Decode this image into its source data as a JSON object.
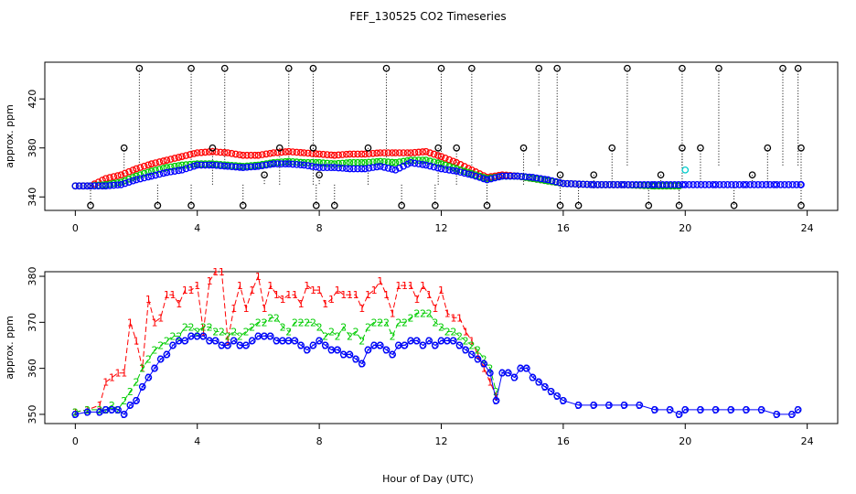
{
  "chart": {
    "title": "FEF_130525  CO2 Timeseries",
    "xlabel": "Hour of Day (UTC)"
  },
  "chart_data": [
    {
      "type": "scatter",
      "panel": "top",
      "title": "FEF_130525  CO2 Timeseries",
      "ylabel": "approx. ppm",
      "xlim": [
        -1,
        25
      ],
      "ylim": [
        329,
        450
      ],
      "xticks": [
        0,
        4,
        8,
        12,
        16,
        20,
        24
      ],
      "yticks": [
        340,
        380,
        420
      ],
      "colors": {
        "max": "#000000",
        "series_a": "#ff0000",
        "series_b": "#00cc00",
        "series_c": "#0000ff",
        "special": "#00cccc"
      },
      "max_hours": [
        2.1,
        3.8,
        4.9,
        7.0,
        7.8,
        10.2,
        12.0,
        13.0,
        15.2,
        15.8,
        18.1,
        19.9,
        21.1,
        23.2,
        23.7
      ],
      "max_value": 445,
      "min_hours": [
        0.5,
        2.7,
        3.8,
        5.5,
        7.9,
        8.5,
        10.7,
        11.8,
        13.5,
        15.9,
        16.5,
        18.8,
        19.8,
        21.6,
        23.8
      ],
      "min_value": 333,
      "mid_spikes": [
        {
          "x": 1.6,
          "y": 380
        },
        {
          "x": 4.5,
          "y": 380
        },
        {
          "x": 6.7,
          "y": 380
        },
        {
          "x": 7.8,
          "y": 380
        },
        {
          "x": 9.6,
          "y": 380
        },
        {
          "x": 11.9,
          "y": 380
        },
        {
          "x": 12.5,
          "y": 380
        },
        {
          "x": 14.7,
          "y": 380
        },
        {
          "x": 17.6,
          "y": 380
        },
        {
          "x": 19.9,
          "y": 380
        },
        {
          "x": 20.5,
          "y": 380
        },
        {
          "x": 22.7,
          "y": 380
        },
        {
          "x": 23.8,
          "y": 380
        },
        {
          "x": 17.0,
          "y": 358
        },
        {
          "x": 19.2,
          "y": 358
        },
        {
          "x": 22.2,
          "y": 358
        },
        {
          "x": 6.2,
          "y": 358
        },
        {
          "x": 8.0,
          "y": 358
        },
        {
          "x": 15.9,
          "y": 358
        }
      ],
      "special_point": {
        "x": 20.0,
        "y": 362
      },
      "series": [
        {
          "x": [
            0,
            0.5,
            1,
            1.5,
            2,
            2.5,
            3,
            3.5,
            4,
            4.5,
            5,
            5.5,
            6,
            6.5,
            7,
            7.5,
            8,
            8.5,
            9,
            9.5,
            10,
            10.5,
            11,
            11.5,
            12,
            12.5,
            13,
            13.5,
            14,
            14.5,
            15,
            15.5,
            16,
            17,
            18,
            19,
            19.8
          ],
          "values": [
            349,
            349,
            355,
            358,
            363,
            367,
            370,
            373,
            376,
            377,
            376,
            374,
            374,
            376,
            377,
            376,
            375,
            374,
            375,
            375,
            376,
            376,
            376,
            377,
            373,
            368,
            362,
            356,
            358,
            357,
            355,
            353,
            351,
            350,
            350,
            349,
            349
          ]
        },
        {
          "x": [
            0,
            0.5,
            1,
            1.5,
            2,
            2.5,
            3,
            3.5,
            4,
            4.5,
            5,
            5.5,
            6,
            6.5,
            7,
            7.5,
            8,
            8.5,
            9,
            9.5,
            10,
            10.5,
            11,
            11.5,
            12,
            12.5,
            13,
            13.5,
            14,
            14.5,
            15,
            15.5,
            16,
            17,
            18,
            19,
            19.8
          ],
          "values": [
            349,
            349,
            350,
            352,
            357,
            361,
            364,
            366,
            367,
            367,
            366,
            365,
            366,
            368,
            369,
            368,
            368,
            367,
            368,
            368,
            369,
            368,
            370,
            370,
            367,
            363,
            359,
            355,
            357,
            357,
            355,
            353,
            351,
            350,
            350,
            349,
            349
          ]
        },
        {
          "x": [
            0,
            0.5,
            1,
            1.5,
            2,
            2.5,
            3,
            3.5,
            4,
            4.5,
            5,
            5.5,
            6,
            6.5,
            7,
            7.5,
            8,
            8.5,
            9,
            9.5,
            10,
            10.5,
            11,
            11.5,
            12,
            12.5,
            13,
            13.5,
            14,
            14.5,
            15,
            15.5,
            16,
            17,
            18,
            19,
            20,
            21,
            22,
            23,
            23.8
          ],
          "values": [
            349,
            349,
            349,
            350,
            354,
            357,
            360,
            362,
            366,
            366,
            365,
            364,
            365,
            367,
            367,
            366,
            364,
            364,
            363,
            363,
            365,
            362,
            368,
            366,
            363,
            361,
            358,
            354,
            357,
            357,
            356,
            354,
            351,
            350,
            350,
            350,
            350,
            350,
            350,
            350,
            350
          ]
        }
      ]
    },
    {
      "type": "line",
      "panel": "bottom",
      "ylabel": "approx. ppm",
      "xlabel": "Hour of Day (UTC)",
      "xlim": [
        -1,
        25
      ],
      "ylim": [
        348,
        381
      ],
      "xticks": [
        0,
        4,
        8,
        12,
        16,
        20,
        24
      ],
      "yticks": [
        350,
        360,
        370,
        380
      ],
      "series": [
        {
          "marker": "1",
          "color": "#ff0000",
          "x": [
            0,
            0.4,
            0.8,
            1.0,
            1.2,
            1.4,
            1.6,
            1.8,
            2.0,
            2.2,
            2.4,
            2.6,
            2.8,
            3.0,
            3.2,
            3.4,
            3.6,
            3.8,
            4.0,
            4.2,
            4.4,
            4.6,
            4.8,
            5.0,
            5.2,
            5.4,
            5.6,
            5.8,
            6.0,
            6.2,
            6.4,
            6.6,
            6.8,
            7.0,
            7.2,
            7.4,
            7.6,
            7.8,
            8.0,
            8.2,
            8.4,
            8.6,
            8.8,
            9.0,
            9.2,
            9.4,
            9.6,
            9.8,
            10.0,
            10.2,
            10.4,
            10.6,
            10.8,
            11.0,
            11.2,
            11.4,
            11.6,
            11.8,
            12.0,
            12.2,
            12.4,
            12.6,
            12.8,
            13.0,
            13.2,
            13.4,
            13.6,
            13.8
          ],
          "values": [
            350.5,
            351,
            352,
            357,
            358,
            359,
            359,
            370,
            366,
            360,
            375,
            370,
            371,
            376,
            376,
            374,
            377,
            377,
            378,
            368,
            379,
            381,
            381,
            366,
            373,
            378,
            373,
            377,
            380,
            373,
            378,
            376,
            375,
            376,
            376,
            374,
            378,
            377,
            377,
            374,
            375,
            377,
            376,
            376,
            376,
            373,
            376,
            377,
            379,
            376,
            372,
            378,
            378,
            378,
            375,
            378,
            376,
            373,
            377,
            372,
            371,
            371,
            368,
            366,
            363,
            360,
            357,
            354
          ]
        },
        {
          "marker": "2",
          "color": "#00cc00",
          "x": [
            0,
            0.4,
            0.8,
            1.0,
            1.2,
            1.4,
            1.6,
            1.8,
            2.0,
            2.2,
            2.4,
            2.6,
            2.8,
            3.0,
            3.2,
            3.4,
            3.6,
            3.8,
            4.0,
            4.2,
            4.4,
            4.6,
            4.8,
            5.0,
            5.2,
            5.4,
            5.6,
            5.8,
            6.0,
            6.2,
            6.4,
            6.6,
            6.8,
            7.0,
            7.2,
            7.4,
            7.6,
            7.8,
            8.0,
            8.2,
            8.4,
            8.6,
            8.8,
            9.0,
            9.2,
            9.4,
            9.6,
            9.8,
            10.0,
            10.2,
            10.4,
            10.6,
            10.8,
            11.0,
            11.2,
            11.4,
            11.6,
            11.8,
            12.0,
            12.2,
            12.4,
            12.6,
            12.8,
            13.0,
            13.2,
            13.4,
            13.6,
            13.8
          ],
          "values": [
            350.5,
            351,
            351,
            351,
            352,
            351,
            353,
            355,
            357,
            360,
            362,
            364,
            365,
            366,
            367,
            367,
            369,
            369,
            368,
            369,
            369,
            368,
            368,
            367,
            368,
            367,
            368,
            369,
            370,
            370,
            371,
            371,
            369,
            368,
            370,
            370,
            370,
            370,
            369,
            367,
            368,
            367,
            369,
            367,
            368,
            366,
            369,
            370,
            370,
            370,
            367,
            370,
            370,
            371,
            372,
            372,
            372,
            370,
            369,
            368,
            368,
            367,
            366,
            365,
            364,
            362,
            360,
            355
          ]
        },
        {
          "marker": "3",
          "color": "#0000ff",
          "x": [
            0,
            0.4,
            0.8,
            1.0,
            1.2,
            1.4,
            1.6,
            1.8,
            2.0,
            2.2,
            2.4,
            2.6,
            2.8,
            3.0,
            3.2,
            3.4,
            3.6,
            3.8,
            4.0,
            4.2,
            4.4,
            4.6,
            4.8,
            5.0,
            5.2,
            5.4,
            5.6,
            5.8,
            6.0,
            6.2,
            6.4,
            6.6,
            6.8,
            7.0,
            7.2,
            7.4,
            7.6,
            7.8,
            8.0,
            8.2,
            8.4,
            8.6,
            8.8,
            9.0,
            9.2,
            9.4,
            9.6,
            9.8,
            10.0,
            10.2,
            10.4,
            10.6,
            10.8,
            11.0,
            11.2,
            11.4,
            11.6,
            11.8,
            12.0,
            12.2,
            12.4,
            12.6,
            12.8,
            13.0,
            13.2,
            13.4,
            13.6,
            13.8,
            14.0,
            14.2,
            14.4,
            14.6,
            14.8,
            15.0,
            15.2,
            15.4,
            15.6,
            15.8,
            16.0,
            16.5,
            17.0,
            17.5,
            18.0,
            18.5,
            19.0,
            19.5,
            19.8,
            20.0,
            20.5,
            21.0,
            21.5,
            22.0,
            22.5,
            23.0,
            23.5,
            23.7
          ],
          "values": [
            350,
            350.5,
            350.5,
            351,
            351,
            351,
            350,
            352,
            353,
            356,
            358,
            360,
            362,
            363,
            365,
            366,
            366,
            367,
            367,
            367,
            366,
            366,
            365,
            365,
            366,
            365,
            365,
            366,
            367,
            367,
            367,
            366,
            366,
            366,
            366,
            365,
            364,
            365,
            366,
            365,
            364,
            364,
            363,
            363,
            362,
            361,
            364,
            365,
            365,
            364,
            363,
            365,
            365,
            366,
            366,
            365,
            366,
            365,
            366,
            366,
            366,
            365,
            364,
            363,
            362,
            361,
            359,
            353,
            359,
            359,
            358,
            360,
            360,
            358,
            357,
            356,
            355,
            354,
            353,
            352,
            352,
            352,
            352,
            352,
            351,
            351,
            350,
            351,
            351,
            351,
            351,
            351,
            351,
            350,
            350,
            351
          ]
        }
      ]
    }
  ]
}
